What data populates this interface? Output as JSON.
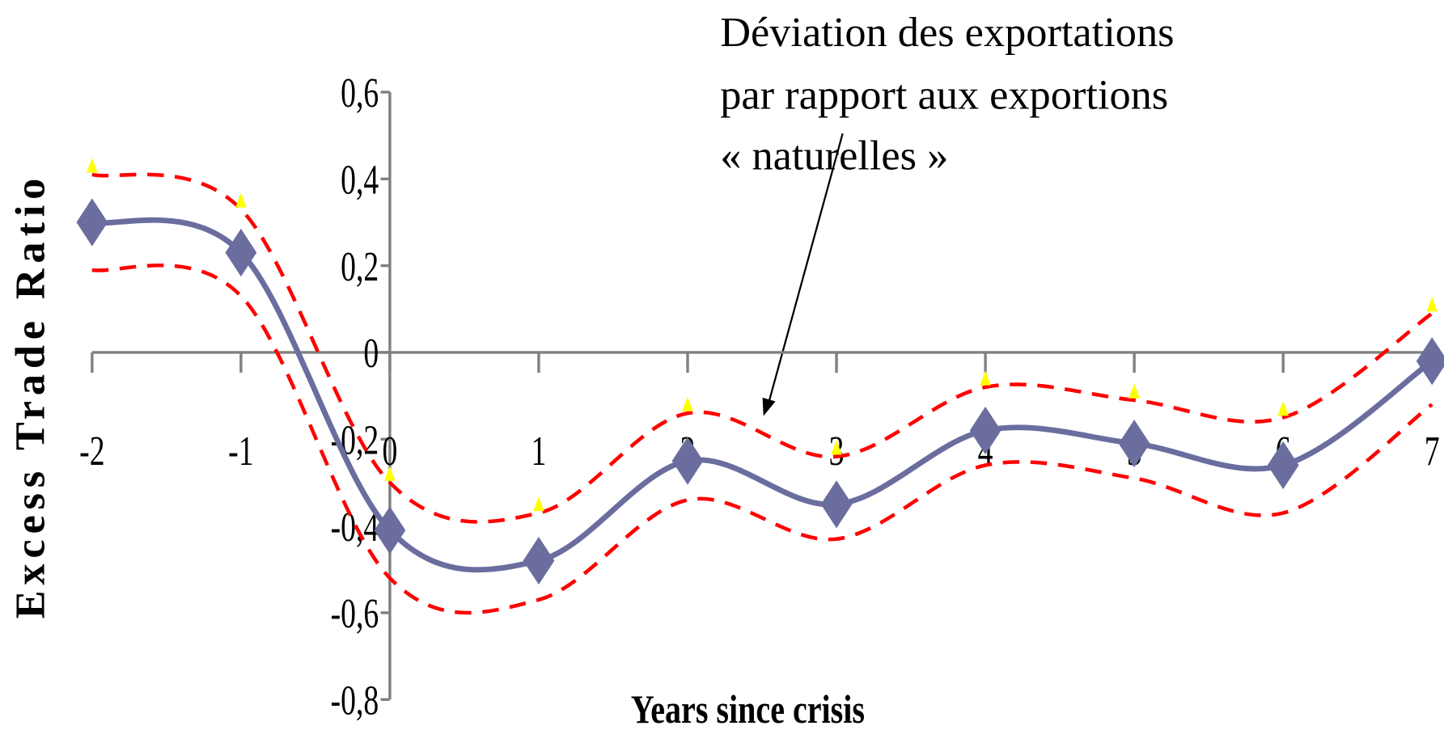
{
  "chart_data": {
    "type": "line",
    "ylabel": "Excess Trade Ratio",
    "xlabel": "Years since crisis",
    "annotation": [
      "Déviation des exportations",
      "par rapport aux exportions",
      "« naturelles »"
    ],
    "x": [
      -2,
      -1,
      0,
      1,
      2,
      3,
      4,
      5,
      6,
      7
    ],
    "series": [
      {
        "color": "#6a6d9e",
        "style": "solid",
        "marker": "diamond",
        "values": [
          0.3,
          0.23,
          -0.41,
          -0.48,
          -0.25,
          -0.35,
          -0.18,
          -0.21,
          -0.26,
          -0.02
        ]
      },
      {
        "color": "#ff0000",
        "style": "dashed",
        "marker": "triangle",
        "values": [
          0.41,
          0.33,
          -0.3,
          -0.37,
          -0.14,
          -0.24,
          -0.08,
          -0.11,
          -0.15,
          0.09
        ]
      },
      {
        "color": "#ff0000",
        "style": "dashed",
        "values": [
          0.19,
          0.13,
          -0.52,
          -0.57,
          -0.34,
          -0.43,
          -0.26,
          -0.29,
          -0.37,
          -0.12
        ]
      }
    ],
    "xlim": [
      -2,
      7
    ],
    "xticks": [
      -2,
      -1,
      0,
      1,
      2,
      3,
      4,
      5,
      6,
      7
    ],
    "ylim": [
      -0.8,
      0.6
    ],
    "yticks": [
      {
        "value": -0.8,
        "label": "-0,8"
      },
      {
        "value": -0.6,
        "label": "-0,6"
      },
      {
        "value": -0.4,
        "label": "-0,4"
      },
      {
        "value": -0.2,
        "label": "-0,2"
      },
      {
        "value": 0,
        "label": "0"
      },
      {
        "value": 0.2,
        "label": "0,2"
      },
      {
        "value": 0.4,
        "label": "0,4"
      },
      {
        "value": 0.6,
        "label": "0,6"
      }
    ]
  }
}
